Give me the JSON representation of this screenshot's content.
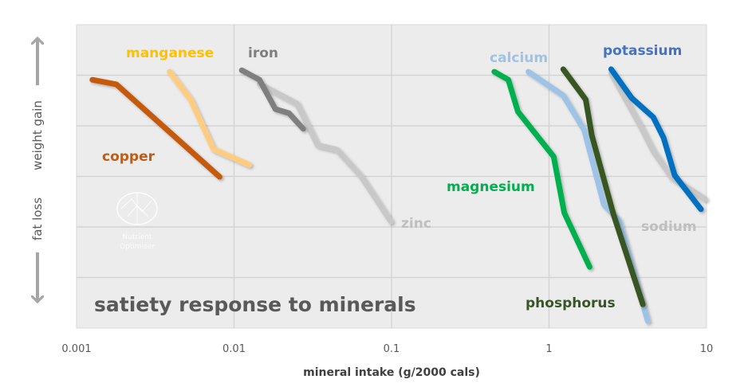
{
  "chart_data": {
    "type": "line",
    "title": "satiety response to minerals",
    "xlabel": "mineral intake (g/2000 cals)",
    "ylabel_top": "weight gain",
    "ylabel_bottom": "fat loss",
    "x_scale": "log",
    "xlim": [
      0.001,
      10
    ],
    "x_ticks": [
      "0.001",
      "0.01",
      "0.1",
      "1",
      "10"
    ],
    "ylim": [
      0,
      6
    ],
    "y_ticks_shown": false,
    "grid": true,
    "legend": "inline labels",
    "logo_text": "Nutrient Optimiser",
    "series": [
      {
        "name": "copper",
        "color": "#c55a11",
        "label_color": "#c55a11",
        "x": [
          0.00126,
          0.00179,
          0.0081
        ],
        "y": [
          4.91,
          4.82,
          2.99
        ]
      },
      {
        "name": "manganese",
        "color": "#ffcc80",
        "label_color": "#ffc000",
        "x": [
          0.0039,
          0.0053,
          0.0074,
          0.0125
        ],
        "y": [
          5.07,
          4.52,
          3.54,
          3.23
        ]
      },
      {
        "name": "zinc",
        "color": "#c8c8c8",
        "label_color": "#bfbfbf",
        "x": [
          0.0145,
          0.0251,
          0.0339,
          0.0449,
          0.0635,
          0.099
        ],
        "y": [
          4.83,
          4.44,
          3.62,
          3.53,
          3.02,
          2.11
        ]
      },
      {
        "name": "iron",
        "color": "#7f7f7f",
        "label_color": "#7f7f7f",
        "x": [
          0.0112,
          0.0145,
          0.0183,
          0.0223,
          0.0275
        ],
        "y": [
          5.1,
          4.91,
          4.33,
          4.25,
          3.94
        ]
      },
      {
        "name": "magnesium",
        "color": "#00b050",
        "label_color": "#00b050",
        "x": [
          0.449,
          0.552,
          0.635,
          1.07,
          1.25,
          1.81
        ],
        "y": [
          5.07,
          4.91,
          4.28,
          3.39,
          2.28,
          1.21
        ]
      },
      {
        "name": "calcium",
        "color": "#9dc3e6",
        "label_color": "#9dc3e6",
        "x": [
          0.739,
          1.23,
          1.67,
          2.23,
          2.78,
          4.23
        ],
        "y": [
          5.07,
          4.6,
          3.92,
          2.44,
          2.13,
          0.14
        ]
      },
      {
        "name": "phosphorus",
        "color": "#375623",
        "label_color": "#375623",
        "x": [
          1.23,
          1.71,
          1.87,
          2.57,
          3.94
        ],
        "y": [
          5.12,
          4.52,
          3.81,
          2.24,
          0.47
        ]
      },
      {
        "name": "sodium",
        "color": "#c8c8c8",
        "label_color": "#bfbfbf",
        "x": [
          2.48,
          3.77,
          4.59,
          6.0,
          9.8
        ],
        "y": [
          5.04,
          4.02,
          3.5,
          2.98,
          2.55
        ]
      },
      {
        "name": "potassium",
        "color": "#0070c0",
        "label_color": "#4472c4",
        "x": [
          2.48,
          3.35,
          4.59,
          5.34,
          6.28,
          9.22
        ],
        "y": [
          5.12,
          4.55,
          4.17,
          3.76,
          3.02,
          2.35
        ]
      }
    ]
  }
}
